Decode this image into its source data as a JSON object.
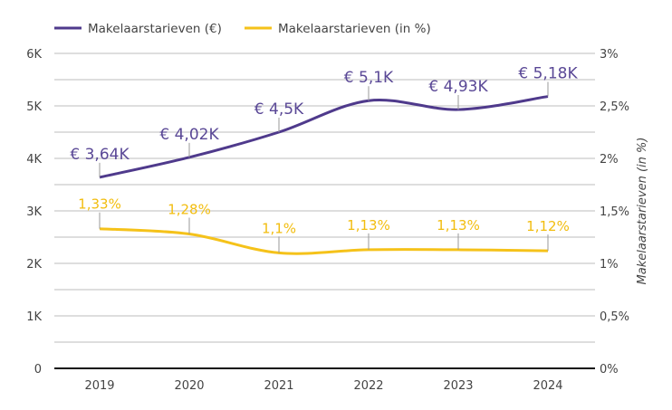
{
  "chart_data": {
    "type": "line",
    "categories": [
      "2019",
      "2020",
      "2021",
      "2022",
      "2023",
      "2024"
    ],
    "series": [
      {
        "name": "Makelaarstarieven (€)",
        "axis": "left",
        "color": "#4f3a8c",
        "values": [
          3640,
          4020,
          4500,
          5100,
          4930,
          5180
        ],
        "labels": [
          "€ 3,64K",
          "€ 4,02K",
          "€ 4,5K",
          "€ 5,1K",
          "€ 4,93K",
          "€ 5,18K"
        ]
      },
      {
        "name": "Makelaarstarieven (in %)",
        "axis": "right",
        "color": "#f5c21a",
        "values": [
          1.33,
          1.28,
          1.1,
          1.13,
          1.13,
          1.12
        ],
        "labels": [
          "1,33%",
          "1,28%",
          "1,1%",
          "1,13%",
          "1,13%",
          "1,12%"
        ]
      }
    ],
    "left_axis": {
      "ylim": [
        0,
        6000
      ],
      "ticks": [
        "0",
        "1K",
        "2K",
        "3K",
        "4K",
        "5K",
        "6K"
      ]
    },
    "right_axis": {
      "ylim": [
        0,
        3
      ],
      "ticks": [
        "0%",
        "0,5%",
        "1%",
        "1,5%",
        "2%",
        "2,5%",
        "3%"
      ],
      "title": "Makelaarstarieven (in %)"
    },
    "grid": true,
    "legend": "top-left"
  }
}
